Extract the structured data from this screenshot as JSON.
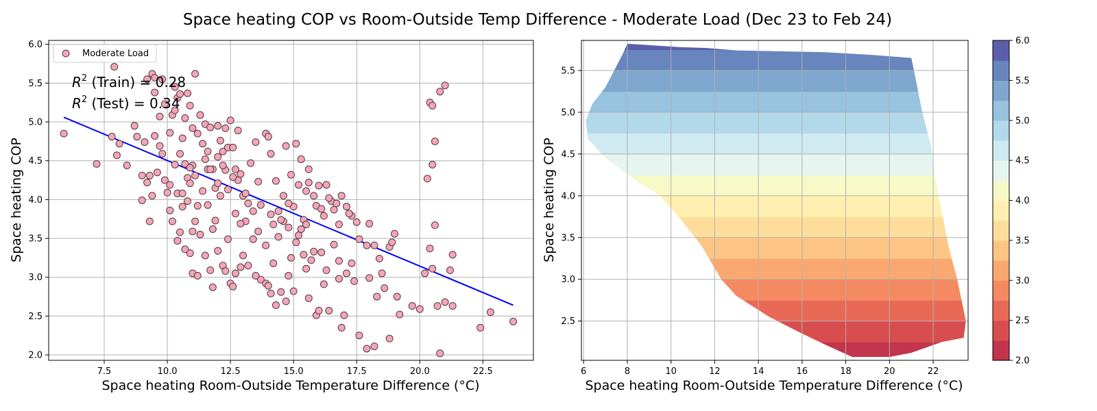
{
  "suptitle": "Space heating COP vs Room-Outside Temp Difference - Moderate Load (Dec 23 to Feb 24)",
  "chart_data": [
    {
      "type": "scatter",
      "xlabel": "Space heating Room-Outside Temperature Difference (°C)",
      "ylabel": "Space heating COP",
      "xlim": [
        5.3,
        24.5
      ],
      "ylim": [
        1.93,
        6.05
      ],
      "xticks": [
        "7.5",
        "10.0",
        "12.5",
        "15.0",
        "17.5",
        "20.0",
        "22.5"
      ],
      "yticks": [
        "2.0",
        "2.5",
        "3.0",
        "3.5",
        "4.0",
        "4.5",
        "5.0",
        "5.5",
        "6.0"
      ],
      "grid": true,
      "legend": {
        "placement": "top-left",
        "label": "Moderate Load"
      },
      "annotations": [
        {
          "r2": "R",
          "sup": "2",
          "rest": " (Train) = 0.28"
        },
        {
          "r2": "R",
          "sup": "2",
          "rest": " (Test) = 0.34"
        }
      ],
      "colors": {
        "marker_fill": "#f4a6b7",
        "marker_edge": "#4d3a40",
        "fit_line": "#0000ff"
      },
      "fit_line": {
        "x": [
          5.9,
          23.7
        ],
        "y": [
          5.06,
          2.64
        ]
      },
      "points": [
        [
          5.9,
          4.85
        ],
        [
          7.2,
          4.46
        ],
        [
          7.9,
          5.71
        ],
        [
          7.8,
          4.81
        ],
        [
          8.0,
          4.57
        ],
        [
          8.1,
          4.72
        ],
        [
          8.4,
          4.44
        ],
        [
          8.8,
          4.81
        ],
        [
          9.0,
          4.31
        ],
        [
          9.1,
          4.74
        ],
        [
          9.0,
          3.99
        ],
        [
          9.3,
          4.31
        ],
        [
          9.3,
          3.72
        ],
        [
          9.4,
          4.05
        ],
        [
          9.2,
          5.55
        ],
        [
          9.4,
          5.62
        ],
        [
          9.5,
          5.38
        ],
        [
          9.5,
          5.57
        ],
        [
          9.7,
          5.07
        ],
        [
          9.8,
          5.55
        ],
        [
          9.8,
          4.59
        ],
        [
          9.9,
          4.25
        ],
        [
          10.0,
          4.09
        ],
        [
          10.1,
          4.19
        ],
        [
          10.1,
          4.86
        ],
        [
          10.2,
          5.09
        ],
        [
          10.3,
          5.45
        ],
        [
          10.4,
          5.31
        ],
        [
          10.5,
          5.36
        ],
        [
          10.6,
          4.79
        ],
        [
          10.5,
          4.59
        ],
        [
          10.7,
          4.46
        ],
        [
          10.8,
          4.28
        ],
        [
          10.8,
          5.37
        ],
        [
          10.9,
          5.21
        ],
        [
          11.0,
          4.92
        ],
        [
          11.0,
          4.44
        ],
        [
          11.1,
          5.62
        ],
        [
          11.1,
          4.31
        ],
        [
          11.3,
          5.09
        ],
        [
          11.4,
          4.72
        ],
        [
          11.5,
          4.97
        ],
        [
          11.5,
          4.52
        ],
        [
          11.6,
          4.39
        ],
        [
          11.7,
          4.93
        ],
        [
          11.8,
          4.39
        ],
        [
          11.9,
          4.15
        ],
        [
          12.0,
          4.55
        ],
        [
          12.0,
          4.21
        ],
        [
          12.1,
          4.76
        ],
        [
          12.2,
          4.62
        ],
        [
          12.3,
          4.92
        ],
        [
          12.3,
          4.38
        ],
        [
          12.4,
          4.67
        ],
        [
          12.5,
          5.02
        ],
        [
          12.6,
          4.67
        ],
        [
          12.7,
          4.39
        ],
        [
          12.8,
          4.25
        ],
        [
          12.9,
          4.33
        ],
        [
          13.0,
          4.05
        ],
        [
          9.2,
          4.22
        ],
        [
          10.4,
          4.08
        ],
        [
          10.6,
          3.91
        ],
        [
          10.8,
          3.98
        ],
        [
          11.0,
          3.59
        ],
        [
          10.9,
          3.31
        ],
        [
          11.1,
          3.72
        ],
        [
          11.3,
          3.55
        ],
        [
          11.6,
          3.93
        ],
        [
          11.9,
          3.73
        ],
        [
          10.1,
          3.86
        ],
        [
          10.2,
          3.72
        ],
        [
          10.5,
          3.58
        ],
        [
          10.4,
          3.47
        ],
        [
          10.7,
          3.36
        ],
        [
          11.0,
          3.05
        ],
        [
          11.2,
          3.02
        ],
        [
          11.5,
          3.28
        ],
        [
          11.7,
          3.09
        ],
        [
          11.8,
          2.87
        ],
        [
          12.0,
          3.34
        ],
        [
          12.2,
          3.15
        ],
        [
          12.4,
          3.49
        ],
        [
          12.5,
          2.92
        ],
        [
          12.6,
          2.88
        ],
        [
          12.7,
          3.05
        ],
        [
          12.9,
          3.13
        ],
        [
          13.0,
          3.28
        ],
        [
          13.2,
          3.15
        ],
        [
          13.4,
          3.49
        ],
        [
          13.1,
          3.72
        ],
        [
          13.4,
          3.85
        ],
        [
          13.6,
          3.59
        ],
        [
          13.7,
          2.97
        ],
        [
          13.9,
          2.92
        ],
        [
          14.0,
          2.89
        ],
        [
          14.1,
          2.79
        ],
        [
          14.3,
          2.64
        ],
        [
          14.2,
          3.18
        ],
        [
          14.5,
          2.81
        ],
        [
          14.7,
          2.69
        ],
        [
          14.8,
          3.02
        ],
        [
          14.9,
          3.25
        ],
        [
          15.0,
          2.82
        ],
        [
          15.2,
          3.54
        ],
        [
          15.4,
          3.29
        ],
        [
          15.5,
          3.11
        ],
        [
          15.6,
          2.73
        ],
        [
          15.8,
          3.33
        ],
        [
          15.9,
          2.51
        ],
        [
          16.0,
          2.57
        ],
        [
          16.2,
          2.91
        ],
        [
          16.4,
          2.57
        ],
        [
          16.6,
          3.42
        ],
        [
          16.8,
          3.21
        ],
        [
          16.9,
          2.35
        ],
        [
          17.0,
          2.51
        ],
        [
          17.1,
          3.05
        ],
        [
          17.3,
          3.18
        ],
        [
          17.6,
          2.25
        ],
        [
          13.3,
          4.47
        ],
        [
          13.6,
          4.23
        ],
        [
          13.9,
          4.85
        ],
        [
          14.1,
          4.59
        ],
        [
          14.3,
          4.24
        ],
        [
          14.4,
          3.85
        ],
        [
          14.6,
          4.05
        ],
        [
          14.7,
          4.69
        ],
        [
          14.9,
          4.32
        ],
        [
          15.1,
          4.72
        ],
        [
          15.2,
          4.19
        ],
        [
          15.4,
          3.74
        ],
        [
          15.5,
          4.11
        ],
        [
          15.6,
          4.22
        ],
        [
          15.8,
          4.05
        ],
        [
          15.9,
          3.92
        ],
        [
          16.1,
          3.88
        ],
        [
          16.2,
          3.79
        ],
        [
          16.3,
          4.19
        ],
        [
          16.5,
          3.98
        ],
        [
          16.6,
          3.87
        ],
        [
          16.8,
          3.68
        ],
        [
          16.9,
          4.05
        ],
        [
          17.1,
          3.91
        ],
        [
          17.3,
          3.79
        ],
        [
          17.5,
          3.71
        ],
        [
          17.6,
          3.49
        ],
        [
          18.0,
          3.69
        ],
        [
          18.2,
          3.41
        ],
        [
          18.4,
          3.24
        ],
        [
          18.0,
          2.99
        ],
        [
          18.3,
          2.75
        ],
        [
          18.6,
          2.86
        ],
        [
          18.8,
          3.39
        ],
        [
          18.9,
          3.45
        ],
        [
          19.0,
          3.56
        ],
        [
          19.1,
          2.75
        ],
        [
          18.8,
          2.21
        ],
        [
          18.2,
          2.11
        ],
        [
          17.9,
          2.08
        ],
        [
          19.7,
          2.63
        ],
        [
          20.0,
          2.59
        ],
        [
          20.2,
          3.05
        ],
        [
          20.3,
          4.27
        ],
        [
          20.4,
          5.25
        ],
        [
          20.5,
          5.21
        ],
        [
          20.5,
          4.45
        ],
        [
          20.6,
          4.75
        ],
        [
          20.6,
          3.67
        ],
        [
          20.8,
          5.39
        ],
        [
          21.0,
          5.47
        ],
        [
          20.4,
          3.37
        ],
        [
          20.5,
          3.11
        ],
        [
          20.7,
          2.63
        ],
        [
          20.8,
          2.02
        ],
        [
          21.0,
          2.68
        ],
        [
          21.2,
          3.09
        ],
        [
          21.3,
          3.29
        ],
        [
          21.3,
          2.63
        ],
        [
          22.4,
          2.35
        ],
        [
          22.8,
          2.55
        ],
        [
          23.7,
          2.43
        ],
        [
          13.9,
          3.41
        ],
        [
          14.1,
          3.81
        ],
        [
          14.2,
          3.68
        ],
        [
          14.4,
          3.52
        ],
        [
          14.6,
          3.72
        ],
        [
          14.8,
          3.64
        ],
        [
          15.0,
          3.91
        ],
        [
          15.3,
          3.62
        ],
        [
          12.1,
          4.05
        ],
        [
          12.4,
          4.13
        ],
        [
          12.7,
          3.82
        ],
        [
          12.9,
          3.69
        ],
        [
          13.2,
          3.95
        ],
        [
          11.4,
          4.11
        ],
        [
          11.7,
          4.39
        ],
        [
          10.9,
          4.41
        ],
        [
          10.6,
          4.08
        ],
        [
          9.6,
          4.35
        ],
        [
          12.0,
          4.95
        ],
        [
          12.8,
          4.89
        ],
        [
          13.5,
          4.74
        ],
        [
          14.0,
          4.81
        ],
        [
          15.3,
          4.52
        ],
        [
          15.6,
          4.39
        ],
        [
          16.0,
          4.18
        ],
        [
          16.4,
          4.02
        ],
        [
          16.7,
          3.95
        ],
        [
          17.2,
          3.82
        ],
        [
          9.9,
          5.23
        ],
        [
          10.3,
          5.15
        ],
        [
          10.7,
          5.05
        ],
        [
          11.2,
          4.85
        ],
        [
          11.6,
          4.62
        ],
        [
          12.2,
          4.44
        ],
        [
          12.6,
          4.29
        ],
        [
          13.1,
          4.08
        ],
        [
          13.7,
          3.93
        ],
        [
          14.5,
          3.74
        ],
        [
          15.1,
          3.45
        ],
        [
          15.7,
          3.22
        ],
        [
          16.3,
          3.09
        ],
        [
          16.8,
          2.98
        ],
        [
          17.4,
          2.95
        ],
        [
          17.9,
          3.41
        ],
        [
          18.5,
          3.05
        ],
        [
          19.2,
          2.52
        ],
        [
          13.5,
          3.02
        ],
        [
          12.3,
          3.08
        ],
        [
          11.8,
          3.62
        ],
        [
          11.2,
          3.92
        ],
        [
          10.9,
          4.21
        ],
        [
          10.3,
          4.45
        ],
        [
          9.7,
          4.69
        ],
        [
          9.5,
          4.82
        ],
        [
          8.7,
          4.95
        ],
        [
          14.8,
          3.95
        ],
        [
          15.5,
          3.68
        ],
        [
          16.1,
          3.32
        ]
      ]
    },
    {
      "type": "contourf",
      "xlabel": "Space heating Room-Outside Temperature Difference (°C)",
      "ylabel": "Space heating COP",
      "xlim": [
        5.9,
        23.6
      ],
      "ylim": [
        2.03,
        5.86
      ],
      "xticks": [
        "6",
        "8",
        "10",
        "12",
        "14",
        "16",
        "18",
        "20",
        "22"
      ],
      "yticks": [
        "2.5",
        "3.0",
        "3.5",
        "4.0",
        "4.5",
        "5.0",
        "5.5"
      ],
      "grid": true,
      "colorbar": {
        "range": [
          2.0,
          6.0
        ],
        "ticks": [
          "2.0",
          "2.5",
          "3.0",
          "3.5",
          "4.0",
          "4.5",
          "5.0",
          "5.5",
          "6.0"
        ],
        "levels": [
          2.0,
          2.25,
          2.5,
          2.75,
          3.0,
          3.25,
          3.5,
          3.75,
          4.0,
          4.25,
          4.5,
          4.75,
          5.0,
          5.25,
          5.5,
          5.75,
          6.0
        ],
        "colors": [
          "#c2354c",
          "#d84d4e",
          "#e96957",
          "#f48a61",
          "#f9a96f",
          "#fcc584",
          "#fedd9a",
          "#fff0b1",
          "#f7f9c6",
          "#e6f5ef",
          "#cfeaf1",
          "#b3d8e9",
          "#97c3df",
          "#7ea7cf",
          "#6885bd",
          "#5b5fab"
        ]
      },
      "boundary": [
        [
          8.0,
          5.82
        ],
        [
          9.2,
          5.8
        ],
        [
          10.4,
          5.78
        ],
        [
          11.6,
          5.77
        ],
        [
          13.0,
          5.74
        ],
        [
          15.0,
          5.73
        ],
        [
          17.0,
          5.72
        ],
        [
          19.0,
          5.69
        ],
        [
          21.0,
          5.65
        ],
        [
          21.2,
          5.4
        ],
        [
          21.5,
          5.0
        ],
        [
          21.9,
          4.6
        ],
        [
          22.1,
          4.2
        ],
        [
          22.4,
          3.8
        ],
        [
          22.7,
          3.4
        ],
        [
          23.1,
          3.0
        ],
        [
          23.5,
          2.5
        ],
        [
          23.4,
          2.3
        ],
        [
          22.4,
          2.25
        ],
        [
          21.0,
          2.12
        ],
        [
          20.0,
          2.07
        ],
        [
          18.3,
          2.07
        ],
        [
          17.2,
          2.2
        ],
        [
          16.0,
          2.35
        ],
        [
          14.5,
          2.55
        ],
        [
          13.0,
          2.8
        ],
        [
          12.3,
          3.0
        ],
        [
          11.4,
          3.4
        ],
        [
          10.5,
          3.7
        ],
        [
          9.5,
          4.0
        ],
        [
          8.3,
          4.2
        ],
        [
          7.0,
          4.45
        ],
        [
          6.2,
          4.68
        ],
        [
          6.1,
          4.9
        ],
        [
          6.4,
          5.1
        ],
        [
          7.0,
          5.3
        ],
        [
          7.4,
          5.5
        ],
        [
          7.8,
          5.7
        ]
      ]
    }
  ]
}
